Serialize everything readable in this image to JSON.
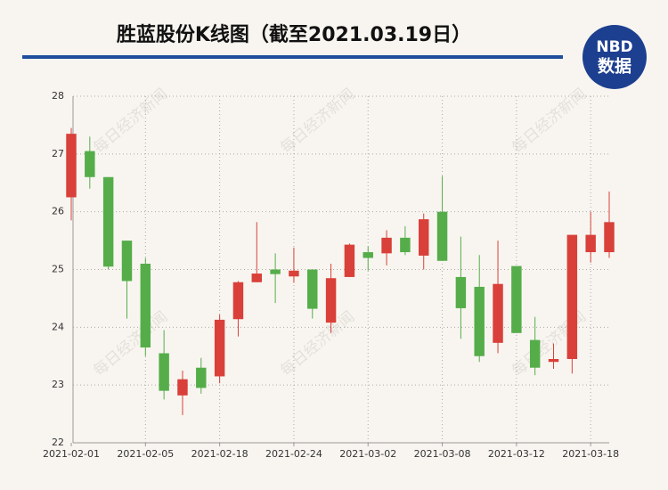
{
  "chart_data": {
    "type": "candlestick",
    "title": "胜蓝股份K线图（截至2021.03.19日）",
    "logo": {
      "top": "NBD",
      "bottom": "数据"
    },
    "watermark": "每日经济新闻",
    "categories": [
      "2021-02-01",
      null,
      null,
      null,
      "2021-02-05",
      null,
      null,
      null,
      "2021-02-18",
      null,
      null,
      null,
      "2021-02-24",
      null,
      null,
      null,
      "2021-03-02",
      null,
      null,
      null,
      "2021-03-08",
      null,
      null,
      null,
      "2021-03-12",
      null,
      null,
      null,
      "2021-03-18",
      null
    ],
    "open": [
      26.25,
      27.05,
      26.6,
      25.5,
      25.1,
      23.55,
      22.82,
      23.3,
      23.15,
      24.14,
      24.78,
      25.0,
      24.88,
      25.0,
      24.08,
      24.87,
      25.3,
      25.28,
      25.55,
      25.24,
      26.0,
      24.87,
      24.7,
      23.73,
      25.06,
      23.78,
      23.4,
      23.45,
      25.3,
      25.3
    ],
    "high": [
      27.45,
      27.3,
      26.6,
      25.5,
      25.2,
      23.95,
      23.25,
      23.47,
      24.22,
      24.8,
      25.82,
      25.28,
      25.38,
      25.0,
      25.1,
      25.45,
      25.4,
      25.68,
      25.75,
      25.97,
      26.62,
      25.57,
      25.25,
      25.5,
      25.06,
      24.18,
      23.72,
      25.6,
      26.0,
      26.35
    ],
    "low": [
      25.85,
      26.4,
      25.0,
      24.15,
      23.5,
      22.75,
      22.48,
      22.85,
      23.03,
      23.84,
      24.78,
      24.42,
      24.77,
      24.15,
      23.9,
      24.87,
      24.98,
      25.07,
      25.25,
      25.0,
      25.15,
      23.8,
      23.4,
      23.55,
      23.9,
      23.17,
      23.28,
      23.2,
      25.12,
      25.2
    ],
    "close": [
      27.35,
      26.6,
      25.05,
      24.8,
      23.65,
      22.9,
      23.1,
      22.95,
      24.13,
      24.78,
      24.93,
      24.92,
      24.98,
      24.32,
      24.85,
      25.43,
      25.2,
      25.55,
      25.3,
      25.87,
      25.15,
      24.33,
      23.5,
      24.75,
      23.9,
      23.3,
      23.45,
      25.6,
      25.6,
      25.82
    ],
    "up_color": "#d9403a",
    "down_color": "#55ad4a",
    "ylim": [
      22,
      28
    ],
    "yticks": [
      22,
      23,
      24,
      25,
      26,
      27,
      28
    ],
    "grid": true
  }
}
